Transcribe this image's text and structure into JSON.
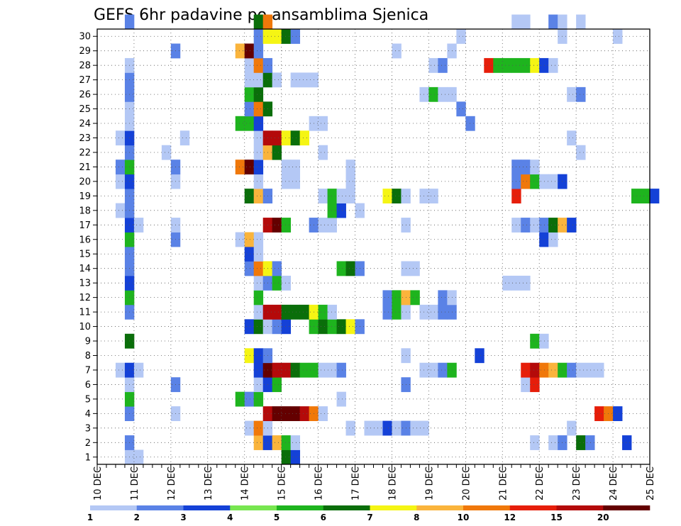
{
  "chart_data": {
    "type": "heatmap",
    "title": "GEFS 6hr padavine po ansamblima Sjenica",
    "x_tick_labels": [
      "10 DEC",
      "11 DEC",
      "12 DEC",
      "13 DEC",
      "14 DEC",
      "15 DEC",
      "16 DEC",
      "17 DEC",
      "18 DEC",
      "19 DEC",
      "20 DEC",
      "21 DEC",
      "22 DEC",
      "23 DEC",
      "24 DEC",
      "25 DEC"
    ],
    "y_tick_labels": [
      "1",
      "2",
      "3",
      "4",
      "5",
      "6",
      "7",
      "8",
      "9",
      "10",
      "11",
      "12",
      "13",
      "14",
      "15",
      "16",
      "17",
      "18",
      "19",
      "20",
      "21",
      "22",
      "23",
      "24",
      "25",
      "26",
      "27",
      "28",
      "29",
      "30"
    ],
    "grid": true,
    "legend_position": "bottom",
    "color_levels": [
      1,
      2,
      3,
      4,
      5,
      6,
      7,
      8,
      10,
      12,
      15,
      20
    ],
    "legend_labels": [
      "1",
      "2",
      "3",
      "4",
      "5",
      "6",
      "7",
      "8",
      "10",
      "12",
      "15",
      "20"
    ],
    "level_colors": [
      "#b4c8f5",
      "#5a82e6",
      "#1441d7",
      "#78e650",
      "#1eb41e",
      "#0a6e0a",
      "#f5f514",
      "#fab43c",
      "#f0780a",
      "#e61e0a",
      "#b40a0a",
      "#640000"
    ],
    "cell_values": {
      "30": [
        [
          3,
          2
        ],
        [
          17,
          6
        ],
        [
          18,
          10
        ],
        [
          45,
          1
        ],
        [
          46,
          1
        ],
        [
          49,
          2
        ],
        [
          50,
          1
        ],
        [
          52,
          1
        ]
      ],
      "29": [
        [
          17,
          2
        ],
        [
          18,
          7
        ],
        [
          19,
          7
        ],
        [
          20,
          6
        ],
        [
          21,
          2
        ],
        [
          39,
          1
        ],
        [
          50,
          1
        ],
        [
          56,
          1
        ]
      ],
      "28": [
        [
          8,
          2
        ],
        [
          15,
          8
        ],
        [
          16,
          20
        ],
        [
          17,
          2
        ],
        [
          32,
          1
        ],
        [
          38,
          1
        ]
      ],
      "27": [
        [
          3,
          1
        ],
        [
          16,
          1
        ],
        [
          17,
          10
        ],
        [
          18,
          2
        ],
        [
          36,
          1
        ],
        [
          37,
          2
        ],
        [
          42,
          12
        ],
        [
          43,
          5
        ],
        [
          44,
          5
        ],
        [
          45,
          5
        ],
        [
          46,
          5
        ],
        [
          47,
          7
        ],
        [
          48,
          3
        ],
        [
          49,
          1
        ]
      ],
      "26": [
        [
          3,
          2
        ],
        [
          16,
          1
        ],
        [
          17,
          1
        ],
        [
          18,
          6
        ],
        [
          19,
          1
        ],
        [
          21,
          1
        ],
        [
          22,
          1
        ],
        [
          23,
          1
        ]
      ],
      "25": [
        [
          3,
          2
        ],
        [
          16,
          5
        ],
        [
          17,
          6
        ],
        [
          35,
          1
        ],
        [
          36,
          5
        ],
        [
          37,
          1
        ],
        [
          38,
          1
        ],
        [
          51,
          1
        ],
        [
          52,
          2
        ]
      ],
      "24": [
        [
          3,
          1
        ],
        [
          16,
          2
        ],
        [
          17,
          10
        ],
        [
          18,
          6
        ],
        [
          39,
          2
        ]
      ],
      "23": [
        [
          3,
          1
        ],
        [
          15,
          5
        ],
        [
          16,
          5
        ],
        [
          17,
          3
        ],
        [
          23,
          1
        ],
        [
          24,
          1
        ],
        [
          40,
          2
        ]
      ],
      "22": [
        [
          2,
          1
        ],
        [
          3,
          3
        ],
        [
          9,
          1
        ],
        [
          17,
          1
        ],
        [
          18,
          15
        ],
        [
          19,
          15
        ],
        [
          20,
          7
        ],
        [
          21,
          6
        ],
        [
          22,
          7
        ],
        [
          51,
          1
        ]
      ],
      "21": [
        [
          3,
          2
        ],
        [
          7,
          1
        ],
        [
          17,
          1
        ],
        [
          18,
          8
        ],
        [
          19,
          6
        ],
        [
          24,
          1
        ],
        [
          52,
          1
        ]
      ],
      "20": [
        [
          2,
          2
        ],
        [
          3,
          5
        ],
        [
          8,
          2
        ],
        [
          15,
          10
        ],
        [
          16,
          20
        ],
        [
          17,
          3
        ],
        [
          20,
          1
        ],
        [
          21,
          1
        ],
        [
          27,
          1
        ],
        [
          45,
          2
        ],
        [
          46,
          2
        ],
        [
          47,
          1
        ]
      ],
      "19": [
        [
          2,
          1
        ],
        [
          3,
          3
        ],
        [
          8,
          1
        ],
        [
          17,
          1
        ],
        [
          20,
          1
        ],
        [
          21,
          1
        ],
        [
          27,
          1
        ],
        [
          45,
          2
        ],
        [
          46,
          10
        ],
        [
          47,
          5
        ],
        [
          48,
          1
        ],
        [
          49,
          1
        ],
        [
          50,
          3
        ]
      ],
      "18": [
        [
          3,
          2
        ],
        [
          16,
          6
        ],
        [
          17,
          8
        ],
        [
          18,
          2
        ],
        [
          24,
          1
        ],
        [
          25,
          5
        ],
        [
          26,
          1
        ],
        [
          27,
          1
        ],
        [
          31,
          7
        ],
        [
          32,
          6
        ],
        [
          33,
          1
        ],
        [
          35,
          1
        ],
        [
          36,
          1
        ],
        [
          45,
          12
        ],
        [
          58,
          5
        ],
        [
          59,
          5
        ],
        [
          60,
          3
        ]
      ],
      "17": [
        [
          2,
          1
        ],
        [
          3,
          2
        ],
        [
          25,
          5
        ],
        [
          26,
          3
        ],
        [
          28,
          1
        ]
      ],
      "16": [
        [
          3,
          3
        ],
        [
          4,
          1
        ],
        [
          8,
          1
        ],
        [
          18,
          15
        ],
        [
          19,
          20
        ],
        [
          20,
          5
        ],
        [
          23,
          2
        ],
        [
          24,
          1
        ],
        [
          25,
          1
        ],
        [
          33,
          1
        ],
        [
          45,
          1
        ],
        [
          46,
          2
        ],
        [
          47,
          1
        ],
        [
          48,
          2
        ],
        [
          49,
          6
        ],
        [
          50,
          8
        ],
        [
          51,
          3
        ]
      ],
      "15": [
        [
          3,
          5
        ],
        [
          8,
          2
        ],
        [
          15,
          1
        ],
        [
          16,
          8
        ],
        [
          17,
          1
        ],
        [
          48,
          3
        ],
        [
          49,
          1
        ]
      ],
      "14": [
        [
          3,
          2
        ],
        [
          16,
          3
        ],
        [
          17,
          1
        ]
      ],
      "13": [
        [
          3,
          2
        ],
        [
          16,
          2
        ],
        [
          17,
          10
        ],
        [
          18,
          7
        ],
        [
          19,
          2
        ],
        [
          26,
          5
        ],
        [
          27,
          6
        ],
        [
          28,
          2
        ],
        [
          33,
          1
        ],
        [
          34,
          1
        ]
      ],
      "12": [
        [
          3,
          3
        ],
        [
          17,
          1
        ],
        [
          18,
          2
        ],
        [
          19,
          5
        ],
        [
          20,
          1
        ],
        [
          44,
          1
        ],
        [
          45,
          1
        ],
        [
          46,
          1
        ]
      ],
      "11": [
        [
          3,
          5
        ],
        [
          17,
          5
        ],
        [
          31,
          2
        ],
        [
          32,
          5
        ],
        [
          33,
          8
        ],
        [
          34,
          5
        ],
        [
          37,
          2
        ],
        [
          38,
          1
        ]
      ],
      "10": [
        [
          3,
          2
        ],
        [
          17,
          1
        ],
        [
          18,
          15
        ],
        [
          19,
          15
        ],
        [
          20,
          6
        ],
        [
          21,
          6
        ],
        [
          22,
          6
        ],
        [
          23,
          7
        ],
        [
          24,
          5
        ],
        [
          25,
          1
        ],
        [
          31,
          2
        ],
        [
          32,
          5
        ],
        [
          33,
          1
        ],
        [
          35,
          1
        ],
        [
          36,
          1
        ],
        [
          37,
          2
        ],
        [
          38,
          2
        ]
      ],
      "9": [
        [
          16,
          3
        ],
        [
          17,
          6
        ],
        [
          18,
          1
        ],
        [
          19,
          2
        ],
        [
          20,
          3
        ],
        [
          23,
          5
        ],
        [
          24,
          6
        ],
        [
          25,
          5
        ],
        [
          26,
          6
        ],
        [
          27,
          7
        ],
        [
          28,
          2
        ]
      ],
      "8": [
        [
          3,
          6
        ],
        [
          47,
          5
        ],
        [
          48,
          1
        ]
      ],
      "7": [
        [
          16,
          7
        ],
        [
          17,
          3
        ],
        [
          18,
          2
        ],
        [
          33,
          1
        ],
        [
          41,
          3
        ]
      ],
      "6": [
        [
          2,
          1
        ],
        [
          3,
          3
        ],
        [
          4,
          1
        ],
        [
          17,
          3
        ],
        [
          18,
          20
        ],
        [
          19,
          15
        ],
        [
          20,
          15
        ],
        [
          21,
          6
        ],
        [
          22,
          5
        ],
        [
          23,
          5
        ],
        [
          24,
          1
        ],
        [
          25,
          1
        ],
        [
          26,
          2
        ],
        [
          35,
          1
        ],
        [
          36,
          1
        ],
        [
          37,
          2
        ],
        [
          38,
          5
        ],
        [
          46,
          12
        ],
        [
          47,
          15
        ],
        [
          48,
          10
        ],
        [
          49,
          8
        ],
        [
          50,
          5
        ],
        [
          51,
          2
        ],
        [
          52,
          1
        ],
        [
          53,
          1
        ],
        [
          54,
          1
        ]
      ],
      "5": [
        [
          3,
          1
        ],
        [
          8,
          2
        ],
        [
          17,
          1
        ],
        [
          18,
          3
        ],
        [
          19,
          5
        ],
        [
          33,
          2
        ],
        [
          46,
          1
        ],
        [
          47,
          12
        ]
      ],
      "4": [
        [
          3,
          5
        ],
        [
          15,
          5
        ],
        [
          16,
          2
        ],
        [
          17,
          5
        ],
        [
          26,
          1
        ]
      ],
      "3": [
        [
          3,
          2
        ],
        [
          8,
          1
        ],
        [
          18,
          15
        ],
        [
          19,
          20
        ],
        [
          20,
          20
        ],
        [
          21,
          20
        ],
        [
          22,
          15
        ],
        [
          23,
          10
        ],
        [
          24,
          1
        ],
        [
          54,
          12
        ],
        [
          55,
          10
        ],
        [
          56,
          3
        ]
      ],
      "2": [
        [
          16,
          1
        ],
        [
          17,
          10
        ],
        [
          18,
          1
        ],
        [
          27,
          1
        ],
        [
          29,
          1
        ],
        [
          30,
          1
        ],
        [
          31,
          3
        ],
        [
          32,
          1
        ],
        [
          33,
          2
        ],
        [
          34,
          1
        ],
        [
          35,
          1
        ],
        [
          51,
          1
        ]
      ],
      "1": [
        [
          3,
          2
        ],
        [
          17,
          8
        ],
        [
          18,
          3
        ],
        [
          19,
          8
        ],
        [
          20,
          5
        ],
        [
          21,
          1
        ],
        [
          47,
          1
        ],
        [
          49,
          1
        ],
        [
          50,
          2
        ],
        [
          52,
          6
        ],
        [
          53,
          2
        ],
        [
          57,
          3
        ]
      ],
      "0": [
        [
          3,
          1
        ],
        [
          4,
          1
        ],
        [
          20,
          6
        ],
        [
          21,
          3
        ]
      ]
    }
  }
}
